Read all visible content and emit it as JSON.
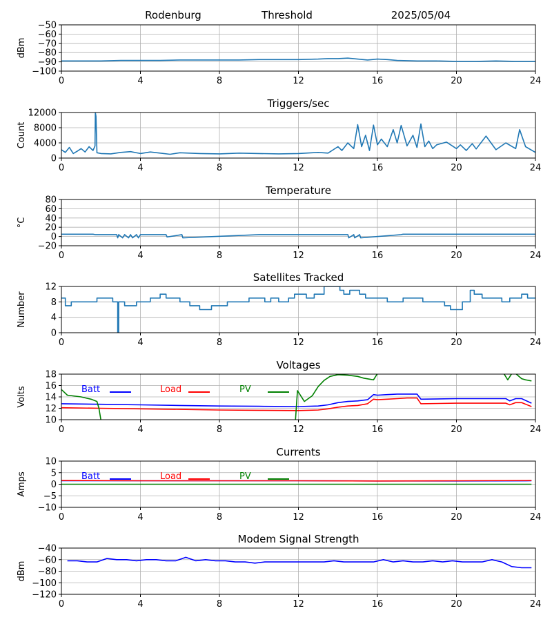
{
  "header": {
    "station": "Rodenburg",
    "metric": "Threshold",
    "date": "2025/05/04"
  },
  "chart_data": [
    {
      "id": "threshold",
      "type": "line",
      "title": "",
      "ylabel": "dBm",
      "xlim": [
        0,
        24
      ],
      "xticks": [
        0,
        4,
        8,
        12,
        16,
        20,
        24
      ],
      "ylim": [
        -100,
        -50
      ],
      "yticks": [
        -100,
        -90,
        -80,
        -70,
        -60,
        -50
      ],
      "grid": true,
      "series": [
        {
          "color": "#1f77b4",
          "x": [
            0,
            1,
            2,
            3,
            4,
            5,
            6,
            7,
            8,
            9,
            10,
            11,
            12,
            13,
            13.5,
            14,
            14.5,
            15,
            15.5,
            16,
            16.5,
            17,
            18,
            19,
            20,
            21,
            22,
            23,
            24
          ],
          "y": [
            -89,
            -89,
            -89,
            -88.5,
            -88.5,
            -88.5,
            -88,
            -88,
            -88,
            -88,
            -87.5,
            -87.5,
            -87.5,
            -87,
            -86.5,
            -86.5,
            -86,
            -87,
            -88,
            -87,
            -87.5,
            -88.5,
            -89,
            -89,
            -89.5,
            -89.5,
            -89,
            -89.5,
            -89.5
          ]
        }
      ]
    },
    {
      "id": "triggers",
      "type": "line",
      "title": "Triggers/sec",
      "ylabel": "Count",
      "xlim": [
        0,
        24
      ],
      "xticks": [
        0,
        4,
        8,
        12,
        16,
        20,
        24
      ],
      "ylim": [
        0,
        12000
      ],
      "yticks": [
        0,
        4000,
        8000,
        12000
      ],
      "grid": true,
      "series": [
        {
          "color": "#1f77b4",
          "x": [
            0,
            0.2,
            0.4,
            0.6,
            0.8,
            1,
            1.2,
            1.4,
            1.6,
            1.7,
            1.72,
            1.75,
            1.8,
            2,
            2.5,
            3,
            3.5,
            4,
            4.5,
            5,
            5.5,
            6,
            7,
            8,
            9,
            10,
            11,
            12,
            13,
            13.5,
            14,
            14.2,
            14.5,
            14.8,
            15,
            15.2,
            15.4,
            15.6,
            15.8,
            16,
            16.2,
            16.5,
            16.8,
            17,
            17.2,
            17.5,
            17.8,
            18,
            18.2,
            18.4,
            18.6,
            18.8,
            19,
            19.5,
            20,
            20.2,
            20.5,
            20.8,
            21,
            21.5,
            22,
            22.5,
            23,
            23.2,
            23.5,
            24
          ],
          "y": [
            2200,
            1500,
            2800,
            1200,
            1800,
            2500,
            1600,
            3000,
            2000,
            3200,
            12000,
            11000,
            1400,
            1200,
            1100,
            1500,
            1700,
            1200,
            1600,
            1300,
            1000,
            1400,
            1200,
            1100,
            1300,
            1200,
            1100,
            1200,
            1500,
            1300,
            3000,
            2000,
            4000,
            2500,
            8800,
            3000,
            6000,
            2000,
            8700,
            3500,
            5000,
            3000,
            7500,
            4000,
            8600,
            3200,
            6000,
            2800,
            9000,
            3000,
            4500,
            2500,
            3500,
            4200,
            2500,
            3500,
            2000,
            3800,
            2400,
            5800,
            2200,
            4000,
            2500,
            7500,
            3000,
            1500
          ]
        }
      ]
    },
    {
      "id": "temperature",
      "type": "line",
      "title": "Temperature",
      "ylabel": "°C",
      "xlim": [
        0,
        24
      ],
      "xticks": [
        0,
        4,
        8,
        12,
        16,
        20,
        24
      ],
      "ylim": [
        -20,
        80
      ],
      "yticks": [
        -20,
        0,
        20,
        40,
        60,
        80
      ],
      "grid": true,
      "series": [
        {
          "color": "#1f77b4",
          "x": [
            0,
            1.6,
            1.7,
            2.8,
            2.85,
            2.9,
            3.1,
            3.2,
            3.4,
            3.5,
            3.6,
            3.8,
            3.9,
            4,
            5.3,
            5.35,
            6.1,
            6.15,
            10,
            14.5,
            14.55,
            14.8,
            14.85,
            15.1,
            15.15,
            17.2,
            17.3,
            24
          ],
          "y": [
            5,
            5,
            4,
            4,
            -3,
            4,
            -3,
            4,
            -3,
            4,
            -3,
            4,
            -3,
            4,
            4,
            -1,
            4,
            -3,
            4,
            4,
            -3,
            4,
            -3,
            4,
            -3,
            4,
            5,
            5
          ]
        }
      ]
    },
    {
      "id": "satellites",
      "type": "line",
      "title": "Satellites Tracked",
      "ylabel": "Number",
      "xlim": [
        0,
        24
      ],
      "xticks": [
        0,
        4,
        8,
        12,
        16,
        20,
        24
      ],
      "ylim": [
        0,
        12
      ],
      "yticks": [
        0,
        4,
        8,
        12
      ],
      "grid": true,
      "series": [
        {
          "color": "#1f77b4",
          "x": [
            0,
            0.2,
            0.2,
            0.5,
            0.5,
            1.8,
            1.8,
            2.6,
            2.6,
            2.85,
            2.85,
            2.9,
            2.9,
            3.2,
            3.2,
            3.8,
            3.8,
            4.5,
            4.5,
            5,
            5,
            5.3,
            5.3,
            6,
            6,
            6.5,
            6.5,
            7,
            7,
            7.6,
            7.6,
            8.4,
            8.4,
            9.5,
            9.5,
            10.3,
            10.3,
            10.6,
            10.6,
            11,
            11,
            11.5,
            11.5,
            11.8,
            11.8,
            12.4,
            12.4,
            12.8,
            12.8,
            13.3,
            13.3,
            14.1,
            14.1,
            14.3,
            14.3,
            14.6,
            14.6,
            15.1,
            15.1,
            15.4,
            15.4,
            16.5,
            16.5,
            17.3,
            17.3,
            18.3,
            18.3,
            19.4,
            19.4,
            19.7,
            19.7,
            20.3,
            20.3,
            20.7,
            20.7,
            20.9,
            20.9,
            21.3,
            21.3,
            22.3,
            22.3,
            22.7,
            22.7,
            23.3,
            23.3,
            23.6,
            23.6,
            24
          ],
          "y": [
            9,
            9,
            7,
            7,
            8,
            8,
            9,
            9,
            8,
            8,
            0,
            0,
            8,
            8,
            7,
            7,
            8,
            8,
            9,
            9,
            10,
            10,
            9,
            9,
            8,
            8,
            7,
            7,
            6,
            6,
            7,
            7,
            8,
            8,
            9,
            9,
            8,
            8,
            9,
            9,
            8,
            8,
            9,
            9,
            10,
            10,
            9,
            9,
            10,
            10,
            12,
            12,
            11,
            11,
            10,
            10,
            11,
            11,
            10,
            10,
            9,
            9,
            8,
            8,
            9,
            9,
            8,
            8,
            7,
            7,
            6,
            6,
            8,
            8,
            11,
            11,
            10,
            10,
            9,
            9,
            8,
            8,
            9,
            9,
            10,
            10,
            9,
            9
          ]
        }
      ]
    },
    {
      "id": "voltages",
      "type": "line",
      "title": "Voltages",
      "ylabel": "Volts",
      "xlim": [
        0,
        24
      ],
      "xticks": [
        0,
        4,
        8,
        12,
        16,
        20,
        24
      ],
      "ylim": [
        10,
        18
      ],
      "yticks": [
        10,
        12,
        14,
        16,
        18
      ],
      "grid": true,
      "legend": "inside-top",
      "series": [
        {
          "name": "Batt",
          "color": "#0000ff",
          "x": [
            0,
            2,
            4,
            6,
            8,
            10,
            12,
            13,
            13.5,
            14,
            14.5,
            15,
            15.5,
            15.8,
            16,
            16.5,
            17,
            17.5,
            18,
            18.2,
            20,
            22,
            22.5,
            22.7,
            23,
            23.3,
            23.8
          ],
          "y": [
            12.8,
            12.7,
            12.6,
            12.5,
            12.4,
            12.35,
            12.3,
            12.4,
            12.6,
            13.0,
            13.2,
            13.3,
            13.5,
            14.4,
            14.3,
            14.4,
            14.5,
            14.5,
            14.5,
            13.6,
            13.7,
            13.7,
            13.7,
            13.3,
            13.7,
            13.7,
            12.9
          ]
        },
        {
          "name": "Load",
          "color": "#ff0000",
          "x": [
            0,
            2,
            4,
            6,
            8,
            10,
            12,
            13,
            13.5,
            14,
            14.5,
            15,
            15.5,
            15.8,
            16,
            16.5,
            17,
            17.5,
            18,
            18.2,
            20,
            22,
            22.5,
            22.7,
            23,
            23.3,
            23.8
          ],
          "y": [
            12.1,
            12.0,
            11.9,
            11.8,
            11.7,
            11.65,
            11.6,
            11.7,
            11.9,
            12.2,
            12.4,
            12.5,
            12.8,
            13.6,
            13.5,
            13.6,
            13.7,
            13.8,
            13.8,
            12.8,
            12.9,
            12.9,
            12.9,
            12.6,
            13.0,
            13.0,
            12.3
          ]
        },
        {
          "name": "PV",
          "color": "#008000",
          "x": [
            0,
            0.3,
            1,
            1.5,
            1.8,
            1.9,
            2.0,
            11.85,
            11.95,
            12.3,
            12.7,
            13.0,
            13.3,
            13.6,
            14.0,
            14.5,
            15,
            15.3,
            15.8,
            16.0,
            22.4,
            22.6,
            22.8,
            23.0,
            23.3,
            23.5,
            23.8
          ],
          "y": [
            15.3,
            14.3,
            14.0,
            13.6,
            13.2,
            12.0,
            9.9,
            9.9,
            15.1,
            13.2,
            14.2,
            15.8,
            16.9,
            17.6,
            17.9,
            17.8,
            17.6,
            17.3,
            17.0,
            18.1,
            18.1,
            17.0,
            18.1,
            18.1,
            17.2,
            17.0,
            16.8
          ]
        }
      ]
    },
    {
      "id": "currents",
      "type": "line",
      "title": "Currents",
      "ylabel": "Amps",
      "xlim": [
        0,
        24
      ],
      "xticks": [
        0,
        4,
        8,
        12,
        16,
        20,
        24
      ],
      "ylim": [
        -10,
        10
      ],
      "yticks": [
        -10,
        -5,
        0,
        5,
        10
      ],
      "grid": true,
      "legend": "inside-top",
      "series": [
        {
          "name": "Batt",
          "color": "#0000ff",
          "x": [
            0,
            4,
            8,
            12,
            16,
            20,
            23.8
          ],
          "y": [
            1.5,
            1.5,
            1.5,
            1.5,
            1.4,
            1.4,
            1.5
          ]
        },
        {
          "name": "Load",
          "color": "#ff0000",
          "x": [
            0,
            4,
            8,
            12,
            16,
            20,
            23.8
          ],
          "y": [
            1.6,
            1.5,
            1.5,
            1.5,
            1.4,
            1.5,
            1.6
          ]
        },
        {
          "name": "PV",
          "color": "#008000",
          "x": [
            0,
            4,
            8,
            12,
            16,
            20,
            23.8
          ],
          "y": [
            0,
            0,
            0,
            0,
            0,
            0,
            0
          ]
        }
      ]
    },
    {
      "id": "modem",
      "type": "line",
      "title": "Modem Signal Strength",
      "ylabel": "dBm",
      "xlim": [
        0,
        24
      ],
      "xticks": [
        0,
        4,
        8,
        12,
        16,
        20,
        24
      ],
      "ylim": [
        -120,
        -40
      ],
      "yticks": [
        -120,
        -100,
        -80,
        -60,
        -40
      ],
      "grid": true,
      "series": [
        {
          "color": "#0000ff",
          "x": [
            0.3,
            0.8,
            1.3,
            1.8,
            2.3,
            2.8,
            3.3,
            3.8,
            4.3,
            4.8,
            5.3,
            5.8,
            6.3,
            6.8,
            7.3,
            7.8,
            8.3,
            8.8,
            9.3,
            9.8,
            10.3,
            10.8,
            11.3,
            11.8,
            12.3,
            12.8,
            13.3,
            13.8,
            14.3,
            14.8,
            15.3,
            15.8,
            16.3,
            16.8,
            17.3,
            17.8,
            18.3,
            18.8,
            19.3,
            19.8,
            20.3,
            20.8,
            21.3,
            21.8,
            22.3,
            22.8,
            23.3,
            23.8
          ],
          "y": [
            -62,
            -62,
            -64,
            -64,
            -58,
            -60,
            -60,
            -62,
            -60,
            -60,
            -62,
            -62,
            -56,
            -62,
            -60,
            -62,
            -62,
            -64,
            -64,
            -66,
            -64,
            -64,
            -64,
            -64,
            -64,
            -64,
            -64,
            -62,
            -64,
            -64,
            -64,
            -64,
            -60,
            -64,
            -62,
            -64,
            -64,
            -62,
            -64,
            -62,
            -64,
            -64,
            -64,
            -60,
            -64,
            -72,
            -74,
            -74
          ]
        }
      ]
    }
  ]
}
